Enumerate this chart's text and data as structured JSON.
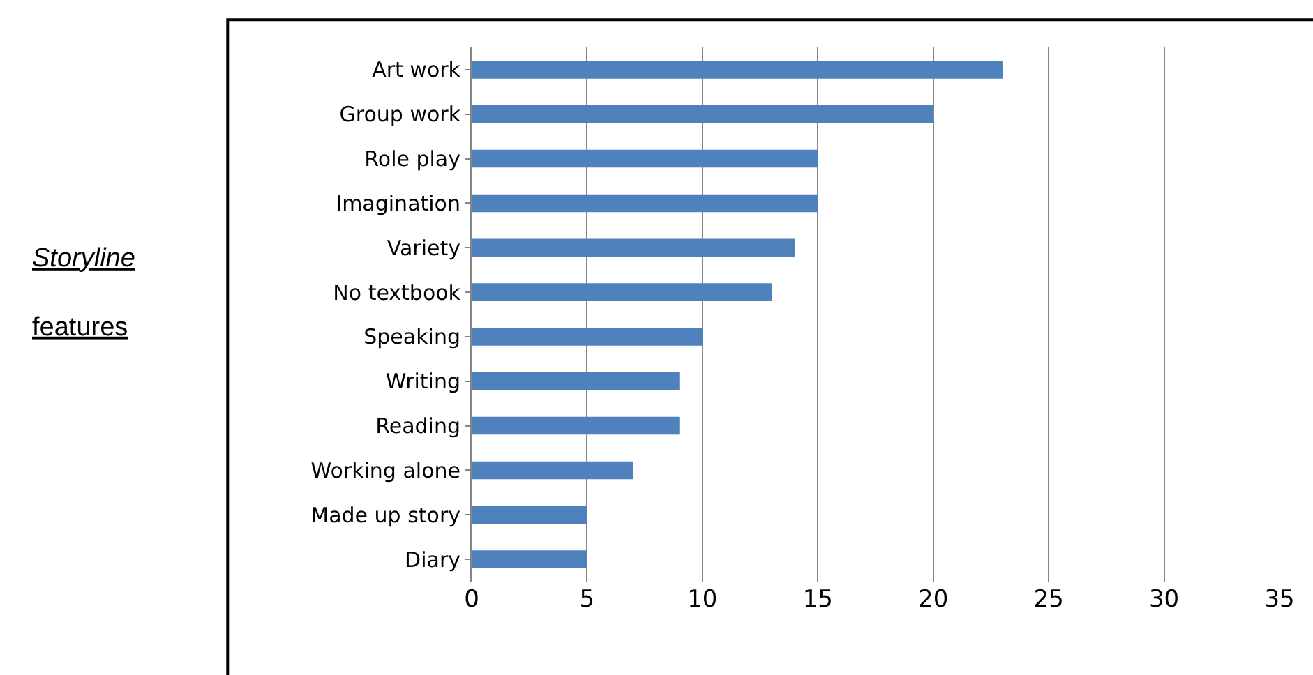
{
  "chart_data": {
    "type": "bar",
    "orientation": "horizontal",
    "ylabel": "Storyline features",
    "categories": [
      "Art work",
      "Group work",
      "Role play",
      "Imagination",
      "Variety",
      "No textbook",
      "Speaking",
      "Writing",
      "Reading",
      "Working alone",
      "Made up story",
      "Diary"
    ],
    "values": [
      23,
      20,
      15,
      15,
      14,
      13,
      10,
      9,
      9,
      7,
      5,
      5
    ],
    "color": "#4f81bd",
    "xlim": [
      0,
      35
    ],
    "xticks": [
      0,
      5,
      10,
      15,
      20,
      25,
      30,
      35
    ],
    "grid": "x",
    "legend": false
  }
}
